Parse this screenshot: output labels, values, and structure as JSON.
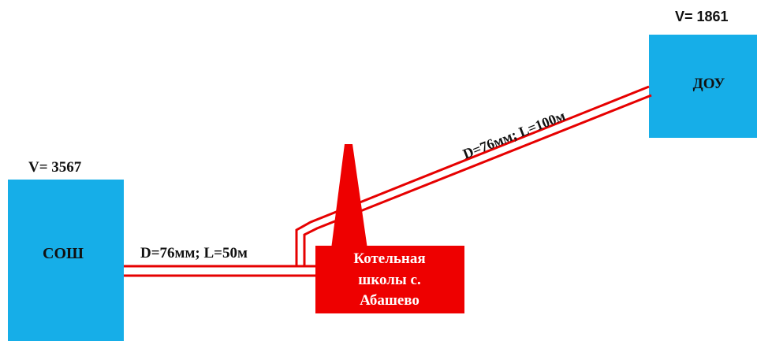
{
  "colors": {
    "building": "#16aee8",
    "boiler": "#ee0000",
    "pipe": "#e60000",
    "text": "#111111"
  },
  "school": {
    "name": "СОШ",
    "volume_label": "V= 3567"
  },
  "kindergarten": {
    "name": "ДОУ",
    "volume_label": "V= 1861"
  },
  "boiler_house": {
    "label_lines": [
      "Котельная",
      "школы с.",
      "Абашево"
    ]
  },
  "pipes": {
    "to_school": "D=76мм; L=50м",
    "to_kindergarten": "D=76мм; L=100м"
  }
}
